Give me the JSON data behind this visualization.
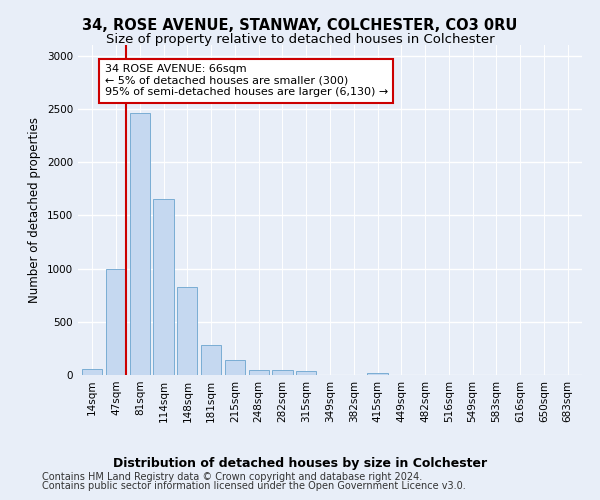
{
  "title1": "34, ROSE AVENUE, STANWAY, COLCHESTER, CO3 0RU",
  "title2": "Size of property relative to detached houses in Colchester",
  "xlabel": "Distribution of detached houses by size in Colchester",
  "ylabel": "Number of detached properties",
  "bar_labels": [
    "14sqm",
    "47sqm",
    "81sqm",
    "114sqm",
    "148sqm",
    "181sqm",
    "215sqm",
    "248sqm",
    "282sqm",
    "315sqm",
    "349sqm",
    "382sqm",
    "415sqm",
    "449sqm",
    "482sqm",
    "516sqm",
    "549sqm",
    "583sqm",
    "616sqm",
    "650sqm",
    "683sqm"
  ],
  "bar_values": [
    55,
    1000,
    2460,
    1650,
    830,
    285,
    145,
    45,
    45,
    35,
    0,
    0,
    20,
    0,
    0,
    0,
    0,
    0,
    0,
    0,
    0
  ],
  "bar_color": "#c5d8f0",
  "bar_edge_color": "#7aadd4",
  "vline_x_pos": 1.42,
  "vline_color": "#cc0000",
  "annotation_text": "34 ROSE AVENUE: 66sqm\n← 5% of detached houses are smaller (300)\n95% of semi-detached houses are larger (6,130) →",
  "annotation_box_facecolor": "#ffffff",
  "annotation_box_edgecolor": "#cc0000",
  "ylim": [
    0,
    3100
  ],
  "yticks": [
    0,
    500,
    1000,
    1500,
    2000,
    2500,
    3000
  ],
  "footer1": "Contains HM Land Registry data © Crown copyright and database right 2024.",
  "footer2": "Contains public sector information licensed under the Open Government Licence v3.0.",
  "bg_color": "#e8eef8",
  "plot_bg_color": "#e8eef8",
  "title1_fontsize": 10.5,
  "title2_fontsize": 9.5,
  "xlabel_fontsize": 9,
  "ylabel_fontsize": 8.5,
  "tick_fontsize": 7.5,
  "footer_fontsize": 7,
  "annotation_fontsize": 8
}
